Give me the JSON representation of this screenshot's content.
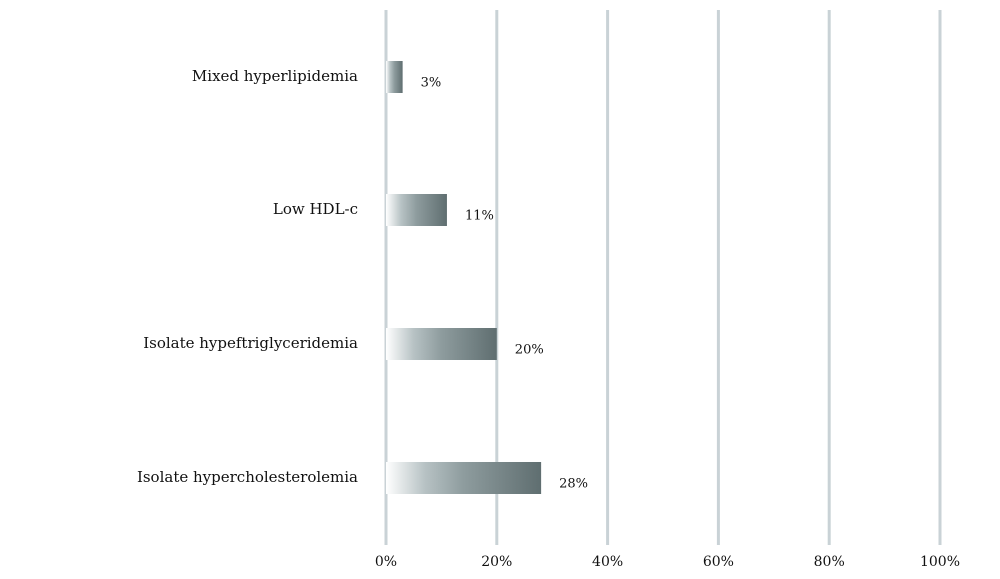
{
  "chart_data": {
    "type": "bar",
    "orientation": "horizontal",
    "categories": [
      "Mixed hyperlipidemia",
      "Low HDL-c",
      "Isolate hypeftriglyceridemia",
      "Isolate hypercholesterolemia"
    ],
    "values": [
      3,
      11,
      20,
      28
    ],
    "value_labels": [
      "3%",
      "11%",
      "20%",
      "28%"
    ],
    "color": "#5f6e70",
    "xlim": [
      0,
      100
    ],
    "xticks": [
      {
        "value": 0,
        "label": "0%"
      },
      {
        "value": 20,
        "label": "20%"
      },
      {
        "value": 40,
        "label": "40%"
      },
      {
        "value": 60,
        "label": "60%"
      },
      {
        "value": 80,
        "label": "80%"
      },
      {
        "value": 100,
        "label": "100%"
      }
    ],
    "grid": true
  }
}
